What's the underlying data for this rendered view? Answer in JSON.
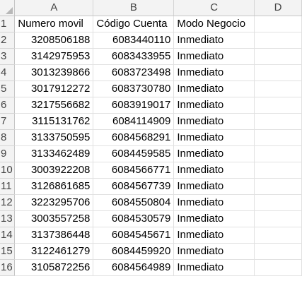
{
  "columns": [
    "A",
    "B",
    "C",
    "D"
  ],
  "rows": [
    {
      "row": "1",
      "cells": [
        "Numero movil",
        "Código Cuenta",
        "Modo Negocio",
        ""
      ]
    },
    {
      "row": "2",
      "cells": [
        "3208506188",
        "6083440110",
        "Inmediato",
        ""
      ]
    },
    {
      "row": "3",
      "cells": [
        "3142975953",
        "6083433955",
        "Inmediato",
        ""
      ]
    },
    {
      "row": "4",
      "cells": [
        "3013239866",
        "6083723498",
        "Inmediato",
        ""
      ]
    },
    {
      "row": "5",
      "cells": [
        "3017912272",
        "6083730780",
        "Inmediato",
        ""
      ]
    },
    {
      "row": "6",
      "cells": [
        "3217556682",
        "6083919017",
        "Inmediato",
        ""
      ]
    },
    {
      "row": "7",
      "cells": [
        "3115131762",
        "6084114909",
        "Inmediato",
        ""
      ]
    },
    {
      "row": "8",
      "cells": [
        "3133750595",
        "6084568291",
        "Inmediato",
        ""
      ]
    },
    {
      "row": "9",
      "cells": [
        "3133462489",
        "6084459585",
        "Inmediato",
        ""
      ]
    },
    {
      "row": "10",
      "cells": [
        "3003922208",
        "6084566771",
        "Inmediato",
        ""
      ]
    },
    {
      "row": "11",
      "cells": [
        "3126861685",
        "6084567739",
        "Inmediato",
        ""
      ]
    },
    {
      "row": "12",
      "cells": [
        "3223295706",
        "6084550804",
        "Inmediato",
        ""
      ]
    },
    {
      "row": "13",
      "cells": [
        "3003557258",
        "6084530579",
        "Inmediato",
        ""
      ]
    },
    {
      "row": "14",
      "cells": [
        "3137386448",
        "6084545671",
        "Inmediato",
        ""
      ]
    },
    {
      "row": "15",
      "cells": [
        "3122461279",
        "6084459920",
        "Inmediato",
        ""
      ]
    },
    {
      "row": "16",
      "cells": [
        "3105872256",
        "6084564989",
        "Inmediato",
        ""
      ]
    }
  ]
}
